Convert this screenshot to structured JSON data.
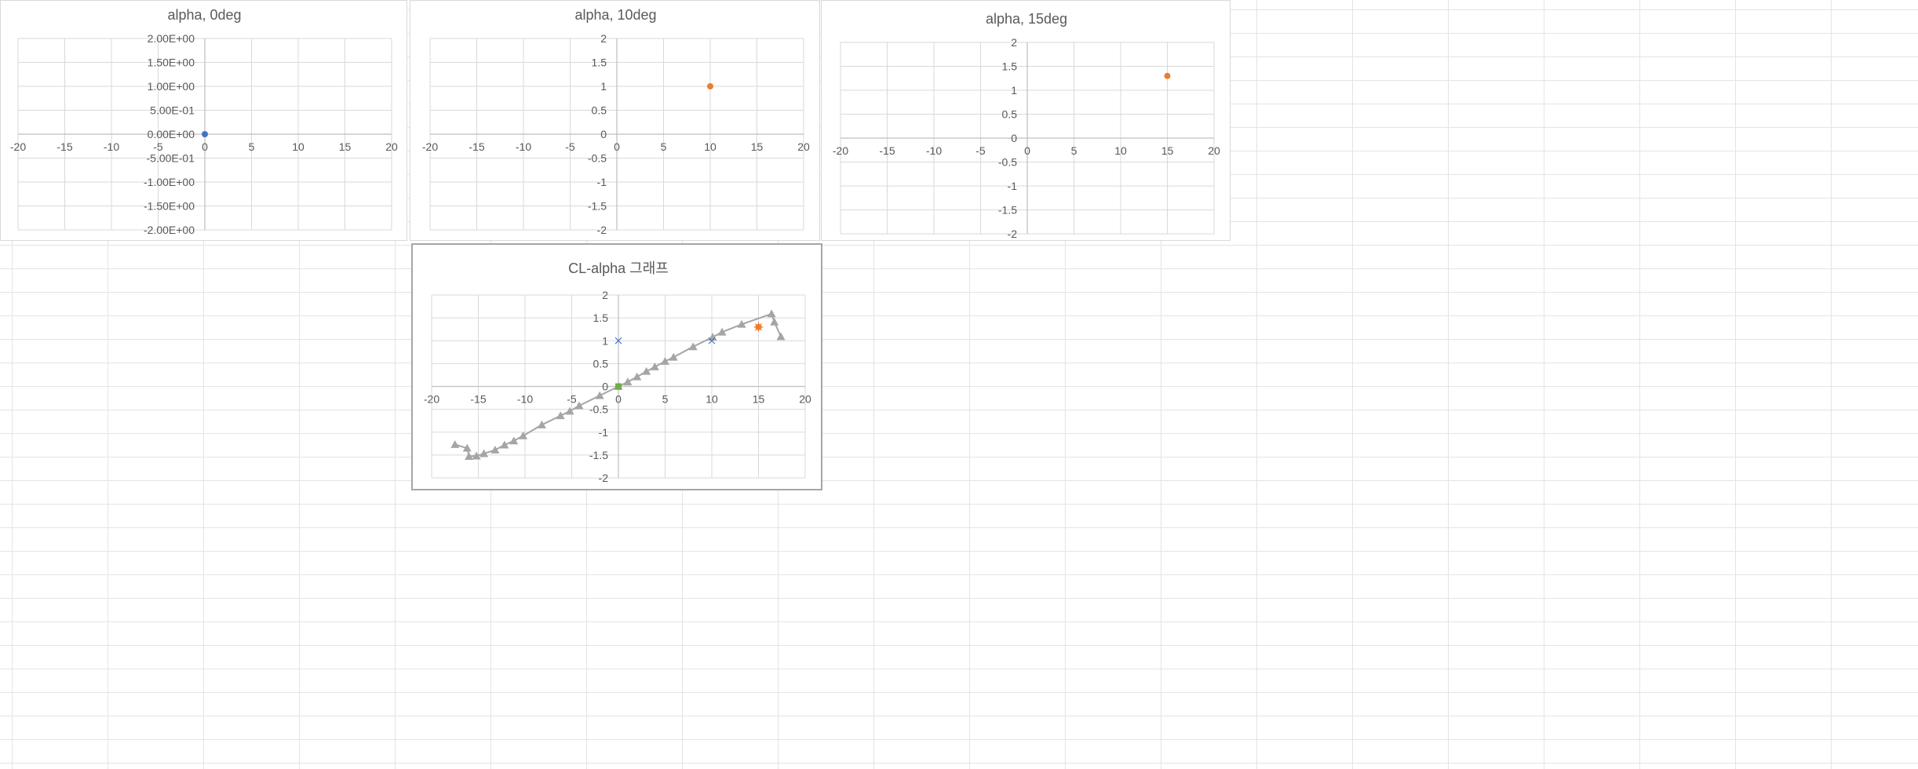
{
  "chart_data": [
    {
      "type": "scatter",
      "title": "alpha, 0deg",
      "xlim": [
        -20,
        20
      ],
      "ylim": [
        -2,
        2
      ],
      "x_ticks": [
        "-20",
        "-15",
        "-10",
        "-5",
        "0",
        "5",
        "10",
        "15",
        "20"
      ],
      "y_ticks": [
        "-2.00E+00",
        "-1.50E+00",
        "-1.00E+00",
        "-5.00E-01",
        "0.00E+00",
        "5.00E-01",
        "1.00E+00",
        "1.50E+00",
        "2.00E+00"
      ],
      "grid": true,
      "legend": "none",
      "series": [
        {
          "marker": "circle",
          "color": "#4472c4",
          "points": [
            [
              0,
              0
            ]
          ]
        }
      ]
    },
    {
      "type": "scatter",
      "title": "alpha, 10deg",
      "xlim": [
        -20,
        20
      ],
      "ylim": [
        -2,
        2
      ],
      "x_ticks": [
        "-20",
        "-15",
        "-10",
        "-5",
        "0",
        "5",
        "10",
        "15",
        "20"
      ],
      "y_ticks": [
        "-2",
        "-1.5",
        "-1",
        "-0.5",
        "0",
        "0.5",
        "1",
        "1.5",
        "2"
      ],
      "grid": true,
      "legend": "none",
      "series": [
        {
          "marker": "circle",
          "color": "#ed7d31",
          "points": [
            [
              10,
              1.0
            ]
          ]
        }
      ]
    },
    {
      "type": "scatter",
      "title": "alpha, 15deg",
      "xlim": [
        -20,
        20
      ],
      "ylim": [
        -2,
        2
      ],
      "x_ticks": [
        "-20",
        "-15",
        "-10",
        "-5",
        "0",
        "5",
        "10",
        "15",
        "20"
      ],
      "y_ticks": [
        "-2",
        "-1.5",
        "-1",
        "-0.5",
        "0",
        "0.5",
        "1",
        "1.5",
        "2"
      ],
      "grid": true,
      "legend": "none",
      "series": [
        {
          "marker": "circle",
          "color": "#ed7d31",
          "points": [
            [
              15,
              1.3
            ]
          ]
        }
      ]
    },
    {
      "type": "scatter",
      "title": "CL-alpha 그래프",
      "xlim": [
        -20,
        20
      ],
      "ylim": [
        -2,
        2
      ],
      "x_ticks": [
        "-20",
        "-15",
        "-10",
        "-5",
        "0",
        "5",
        "10",
        "15",
        "20"
      ],
      "y_ticks": [
        "-2",
        "-1.5",
        "-1",
        "-0.5",
        "0",
        "0.5",
        "1",
        "1.5",
        "2"
      ],
      "grid": true,
      "legend": "none",
      "series": [
        {
          "marker": "triangle",
          "color": "#a5a5a5",
          "line": true,
          "points": [
            [
              -17.5,
              -1.27
            ],
            [
              -16.2,
              -1.35
            ],
            [
              -16.0,
              -1.53
            ],
            [
              -15.2,
              -1.52
            ],
            [
              -14.4,
              -1.47
            ],
            [
              -13.2,
              -1.39
            ],
            [
              -12.2,
              -1.28
            ],
            [
              -11.2,
              -1.19
            ],
            [
              -10.2,
              -1.08
            ],
            [
              -8.2,
              -0.84
            ],
            [
              -6.2,
              -0.64
            ],
            [
              -5.2,
              -0.54
            ],
            [
              -4.2,
              -0.42
            ],
            [
              -2.0,
              -0.2
            ],
            [
              0.0,
              0.0
            ],
            [
              1.0,
              0.1
            ],
            [
              2.0,
              0.21
            ],
            [
              3.0,
              0.33
            ],
            [
              3.9,
              0.43
            ],
            [
              5.0,
              0.55
            ],
            [
              5.9,
              0.64
            ],
            [
              8.0,
              0.87
            ],
            [
              10.1,
              1.08
            ],
            [
              11.1,
              1.19
            ],
            [
              13.2,
              1.36
            ],
            [
              16.4,
              1.59
            ],
            [
              16.7,
              1.41
            ],
            [
              17.4,
              1.09
            ]
          ]
        },
        {
          "marker": "x",
          "color": "#4472c4",
          "points": [
            [
              10,
              1.0
            ],
            [
              0,
              1.0
            ]
          ]
        },
        {
          "marker": "star",
          "color": "#ed7d31",
          "points": [
            [
              15,
              1.3
            ]
          ]
        },
        {
          "marker": "circle",
          "color": "#ed7d31",
          "points": [
            [
              15,
              1.3
            ]
          ]
        },
        {
          "marker": "square",
          "color": "#70ad47",
          "points": [
            [
              0,
              0
            ]
          ]
        }
      ]
    }
  ]
}
